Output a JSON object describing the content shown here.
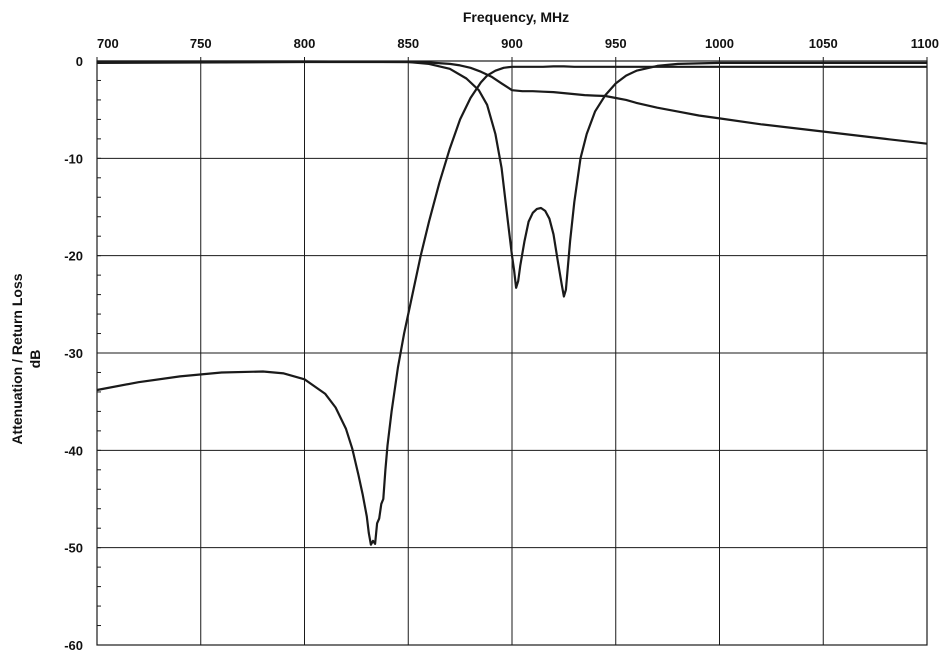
{
  "chart_data": {
    "type": "line",
    "title": "",
    "xlabel": "Frequency, MHz",
    "ylabel_line1": "Attenuation / Return Loss",
    "ylabel_line2": "dB",
    "xlim": [
      700,
      1100
    ],
    "ylim": [
      -60,
      0
    ],
    "x_ticks": [
      700,
      750,
      800,
      850,
      900,
      950,
      1000,
      1050,
      1100
    ],
    "x_tick_labels": [
      "700",
      "750",
      "800",
      "850",
      "900",
      "950",
      "1000",
      "1050",
      "1100"
    ],
    "y_ticks": [
      0,
      -10,
      -20,
      -30,
      -40,
      -50,
      -60
    ],
    "y_tick_labels": [
      "0",
      "-10",
      "-20",
      "-30",
      "-40",
      "-50",
      "-60"
    ],
    "x_axis_position": "top",
    "grid": true,
    "line_color": "#1a1a1a",
    "series": [
      {
        "x": [
          700,
          720,
          740,
          760,
          780,
          790,
          800,
          810,
          815,
          820,
          823,
          826,
          828,
          830,
          831,
          832,
          833,
          834,
          835,
          836,
          837,
          838,
          839,
          840,
          842,
          845,
          848,
          852,
          856,
          860,
          865,
          870,
          875,
          880,
          885,
          888,
          892,
          896,
          900,
          905,
          910,
          915,
          920,
          925,
          930,
          1100
        ],
        "y": [
          -33.8,
          -33.0,
          -32.4,
          -32.0,
          -31.9,
          -32.1,
          -32.7,
          -34.2,
          -35.6,
          -37.8,
          -39.8,
          -42.5,
          -44.5,
          -46.8,
          -48.5,
          -49.7,
          -49.3,
          -49.6,
          -47.5,
          -47.0,
          -45.5,
          -45.0,
          -42.0,
          -39.5,
          -36.0,
          -31.5,
          -28.0,
          -24.0,
          -20.0,
          -16.5,
          -12.5,
          -9.0,
          -6.0,
          -3.8,
          -2.2,
          -1.5,
          -1.0,
          -0.7,
          -0.6,
          -0.6,
          -0.6,
          -0.6,
          -0.55,
          -0.55,
          -0.6,
          -0.6
        ]
      },
      {
        "x": [
          700,
          800,
          850,
          860,
          870,
          878,
          884,
          888,
          892,
          895,
          898,
          900,
          901,
          902,
          903,
          904,
          906,
          908,
          910,
          912,
          914,
          916,
          918,
          920,
          922,
          924,
          925,
          926,
          927,
          928,
          930,
          933,
          936,
          940,
          945,
          950,
          955,
          960,
          970,
          980,
          1000,
          1100
        ],
        "y": [
          -0.2,
          -0.1,
          -0.1,
          -0.3,
          -0.8,
          -1.8,
          -3.0,
          -4.5,
          -7.5,
          -11.0,
          -16.5,
          -20.0,
          -21.5,
          -23.3,
          -22.6,
          -21.0,
          -18.5,
          -16.5,
          -15.6,
          -15.2,
          -15.1,
          -15.4,
          -16.2,
          -17.8,
          -20.5,
          -23.0,
          -24.2,
          -23.5,
          -21.0,
          -18.5,
          -14.5,
          -10.0,
          -7.5,
          -5.2,
          -3.5,
          -2.3,
          -1.5,
          -1.0,
          -0.5,
          -0.3,
          -0.2,
          -0.2
        ]
      },
      {
        "x": [
          700,
          800,
          850,
          860,
          870,
          875,
          880,
          885,
          890,
          895,
          900,
          905,
          910,
          915,
          920,
          925,
          930,
          935,
          940,
          945,
          950,
          955,
          960,
          970,
          980,
          990,
          1000,
          1020,
          1040,
          1060,
          1080,
          1100
        ],
        "y": [
          -0.05,
          -0.05,
          -0.1,
          -0.15,
          -0.3,
          -0.45,
          -0.7,
          -1.1,
          -1.6,
          -2.3,
          -3.0,
          -3.1,
          -3.1,
          -3.15,
          -3.2,
          -3.3,
          -3.4,
          -3.5,
          -3.55,
          -3.6,
          -3.8,
          -4.0,
          -4.3,
          -4.8,
          -5.2,
          -5.6,
          -5.9,
          -6.5,
          -7.0,
          -7.5,
          -8.0,
          -8.5
        ]
      }
    ]
  }
}
